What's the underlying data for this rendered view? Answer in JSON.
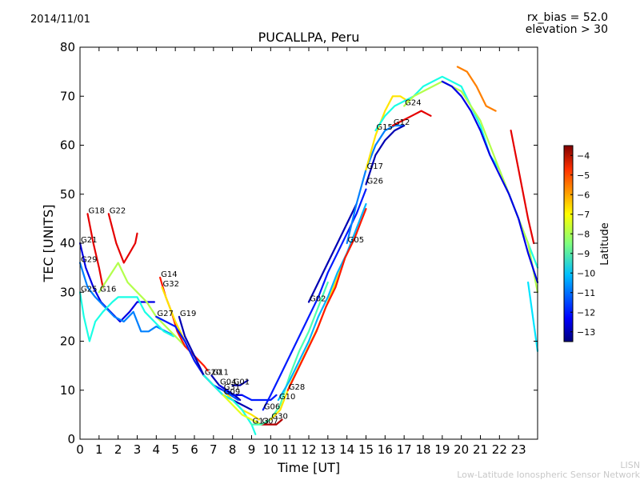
{
  "header": {
    "date": "2014/11/01",
    "rx_bias": "rx_bias = 52.0",
    "elevation": "elevation > 30"
  },
  "footer": {
    "credit_short": "LISN",
    "credit_long": "Low-Latitude Ionospheric Sensor Network"
  },
  "chart_data": {
    "type": "line",
    "title": "PUCALLPA, Peru",
    "xlabel": "Time [UT]",
    "ylabel": "TEC [UNITS]",
    "xlim": [
      0,
      24
    ],
    "ylim": [
      0,
      80
    ],
    "xticks": [
      0,
      1,
      2,
      3,
      4,
      5,
      6,
      7,
      8,
      9,
      10,
      11,
      12,
      13,
      14,
      15,
      16,
      17,
      18,
      19,
      20,
      21,
      22,
      23
    ],
    "yticks": [
      0,
      10,
      20,
      30,
      40,
      50,
      60,
      70,
      80
    ],
    "grid": false,
    "colorbar": {
      "label": "Latitude",
      "range": [
        -13.5,
        -3.5
      ],
      "ticks": [
        -4,
        -5,
        -6,
        -7,
        -8,
        -9,
        -10,
        -11,
        -12,
        -13
      ],
      "colormap": "jet"
    },
    "series": [
      {
        "name": "G18",
        "lat": -4.5,
        "points": [
          [
            0.4,
            46
          ],
          [
            0.7,
            40
          ],
          [
            1.0,
            35
          ],
          [
            1.2,
            31
          ]
        ]
      },
      {
        "name": "G22",
        "lat": -4.5,
        "points": [
          [
            1.5,
            46
          ],
          [
            1.9,
            40
          ],
          [
            2.3,
            36
          ],
          [
            2.6,
            38
          ],
          [
            2.9,
            40
          ],
          [
            3.0,
            42
          ]
        ]
      },
      {
        "name": "G21",
        "lat": -12.5,
        "points": [
          [
            0.0,
            40
          ],
          [
            0.3,
            35
          ],
          [
            0.7,
            31
          ],
          [
            1.1,
            28
          ],
          [
            1.6,
            26
          ],
          [
            2.1,
            24
          ],
          [
            2.6,
            26
          ],
          [
            3.0,
            28
          ],
          [
            3.6,
            28
          ],
          [
            3.9,
            28
          ]
        ]
      },
      {
        "name": "G29",
        "lat": -11.0,
        "points": [
          [
            0.0,
            36
          ],
          [
            0.4,
            31
          ],
          [
            0.8,
            29
          ],
          [
            1.3,
            27
          ],
          [
            1.8,
            25
          ],
          [
            2.3,
            24
          ],
          [
            2.8,
            26
          ],
          [
            3.2,
            22
          ],
          [
            3.6,
            22
          ],
          [
            4.0,
            23
          ],
          [
            4.5,
            22
          ],
          [
            5.0,
            21
          ]
        ]
      },
      {
        "name": "G25",
        "lat": -9.5,
        "points": [
          [
            0.0,
            30
          ],
          [
            0.2,
            25
          ],
          [
            0.5,
            20
          ],
          [
            0.8,
            24
          ],
          [
            1.2,
            26
          ],
          [
            1.7,
            28
          ],
          [
            2.0,
            29
          ],
          [
            2.5,
            29
          ],
          [
            3.0,
            29
          ],
          [
            3.4,
            26
          ],
          [
            3.9,
            24
          ],
          [
            4.4,
            22
          ],
          [
            4.9,
            21
          ]
        ]
      },
      {
        "name": "G16",
        "lat": -8.0,
        "points": [
          [
            1.0,
            30
          ],
          [
            1.5,
            33
          ],
          [
            2.0,
            36
          ],
          [
            2.5,
            32
          ],
          [
            3.0,
            30
          ],
          [
            3.5,
            28
          ],
          [
            4.0,
            25
          ],
          [
            4.5,
            23
          ],
          [
            5.0,
            21
          ],
          [
            5.5,
            19
          ]
        ]
      },
      {
        "name": "G14",
        "lat": -5.0,
        "points": [
          [
            4.2,
            33
          ],
          [
            4.5,
            29
          ],
          [
            4.8,
            26
          ],
          [
            5.1,
            22
          ],
          [
            5.5,
            19
          ],
          [
            6.0,
            17
          ],
          [
            6.5,
            15
          ],
          [
            6.7,
            14
          ]
        ]
      },
      {
        "name": "G32",
        "lat": -7.0,
        "points": [
          [
            4.3,
            31
          ],
          [
            4.7,
            27
          ],
          [
            5.0,
            24
          ],
          [
            5.5,
            20
          ],
          [
            6.0,
            16
          ],
          [
            6.5,
            13
          ],
          [
            7.0,
            11
          ],
          [
            7.5,
            10
          ],
          [
            8.0,
            8
          ],
          [
            8.5,
            6
          ],
          [
            9.0,
            5
          ],
          [
            9.4,
            4
          ]
        ]
      },
      {
        "name": "G27",
        "lat": -12.0,
        "points": [
          [
            4.0,
            25
          ],
          [
            4.5,
            24
          ],
          [
            5.0,
            23
          ],
          [
            5.5,
            20
          ],
          [
            6.0,
            16
          ],
          [
            6.5,
            13
          ],
          [
            7.0,
            11
          ],
          [
            7.5,
            10
          ],
          [
            8.0,
            9
          ],
          [
            8.5,
            9
          ],
          [
            9.0,
            8
          ],
          [
            9.5,
            8
          ],
          [
            10.0,
            8
          ],
          [
            10.3,
            9
          ]
        ]
      },
      {
        "name": "G19",
        "lat": -13.0,
        "points": [
          [
            5.2,
            25
          ],
          [
            5.5,
            21
          ],
          [
            6.0,
            17
          ],
          [
            6.5,
            13
          ],
          [
            7.0,
            11
          ],
          [
            7.5,
            9
          ],
          [
            8.0,
            8
          ],
          [
            8.5,
            7
          ],
          [
            9.0,
            6
          ]
        ]
      },
      {
        "name": "G11",
        "lat": -13.0,
        "points": [
          [
            6.9,
            13
          ],
          [
            7.3,
            11
          ],
          [
            7.7,
            10
          ],
          [
            8.1,
            9
          ],
          [
            8.4,
            8
          ]
        ]
      },
      {
        "name": "G04",
        "lat": -12.5,
        "points": [
          [
            7.3,
            11
          ],
          [
            7.7,
            10
          ],
          [
            8.1,
            9
          ],
          [
            8.5,
            9
          ]
        ]
      },
      {
        "name": "G01",
        "lat": -13.0,
        "points": [
          [
            8.0,
            11
          ],
          [
            8.4,
            11
          ],
          [
            8.8,
            12
          ]
        ]
      },
      {
        "name": "G31",
        "lat": -11.5,
        "points": [
          [
            7.5,
            10
          ],
          [
            7.9,
            9
          ],
          [
            8.3,
            8
          ]
        ]
      },
      {
        "name": "G20",
        "lat": -9.5,
        "points": [
          [
            6.5,
            13
          ],
          [
            7.0,
            11
          ],
          [
            7.5,
            9
          ],
          [
            8.0,
            8
          ],
          [
            8.5,
            6
          ],
          [
            9.0,
            3
          ],
          [
            9.2,
            1
          ]
        ]
      },
      {
        "name": "G09",
        "lat": -7.5,
        "points": [
          [
            7.5,
            9
          ],
          [
            8.0,
            7
          ],
          [
            8.5,
            5
          ],
          [
            9.0,
            4
          ],
          [
            9.5,
            3
          ]
        ]
      },
      {
        "name": "G07",
        "lat": -4.0,
        "points": [
          [
            9.5,
            3
          ],
          [
            10.0,
            3
          ],
          [
            10.3,
            3
          ],
          [
            10.6,
            4
          ]
        ]
      },
      {
        "name": "G13",
        "lat": -9.0,
        "points": [
          [
            9.0,
            3
          ],
          [
            9.5,
            3
          ],
          [
            10.0,
            4
          ],
          [
            10.5,
            7
          ],
          [
            11.0,
            13
          ],
          [
            11.5,
            18
          ],
          [
            12.0,
            22
          ],
          [
            12.5,
            27
          ],
          [
            13.0,
            32
          ]
        ]
      },
      {
        "name": "G06",
        "lat": -12.0,
        "points": [
          [
            9.6,
            6
          ],
          [
            10.0,
            9
          ],
          [
            10.5,
            13
          ],
          [
            11.0,
            17
          ],
          [
            11.5,
            21
          ],
          [
            12.0,
            25
          ],
          [
            12.5,
            29
          ],
          [
            13.0,
            34
          ],
          [
            13.5,
            38
          ],
          [
            14.0,
            42
          ],
          [
            14.5,
            46
          ],
          [
            15.0,
            51
          ]
        ]
      },
      {
        "name": "G30",
        "lat": -7.0,
        "points": [
          [
            10.0,
            4
          ],
          [
            10.5,
            6
          ],
          [
            11.0,
            11
          ],
          [
            11.5,
            15
          ],
          [
            12.0,
            19
          ],
          [
            12.5,
            23
          ],
          [
            13.0,
            28
          ],
          [
            13.5,
            33
          ],
          [
            14.0,
            38
          ],
          [
            14.5,
            42
          ]
        ]
      },
      {
        "name": "G10",
        "lat": -10.5,
        "points": [
          [
            10.4,
            8
          ],
          [
            11.0,
            12
          ],
          [
            11.5,
            16
          ],
          [
            12.0,
            20
          ],
          [
            12.5,
            25
          ],
          [
            13.0,
            29
          ],
          [
            13.5,
            34
          ],
          [
            14.0,
            38
          ],
          [
            14.5,
            43
          ],
          [
            15.0,
            48
          ]
        ]
      },
      {
        "name": "G28",
        "lat": -5.0,
        "points": [
          [
            10.9,
            10
          ],
          [
            11.4,
            14
          ],
          [
            11.9,
            18
          ],
          [
            12.4,
            22
          ],
          [
            12.9,
            27
          ],
          [
            13.4,
            31
          ],
          [
            13.9,
            37
          ],
          [
            14.4,
            41
          ],
          [
            14.8,
            45
          ],
          [
            15.0,
            47
          ]
        ]
      },
      {
        "name": "G02",
        "lat": -13.0,
        "points": [
          [
            12.0,
            28
          ],
          [
            12.5,
            32
          ],
          [
            13.0,
            36
          ],
          [
            13.5,
            40
          ],
          [
            14.0,
            44
          ],
          [
            14.5,
            48
          ]
        ]
      },
      {
        "name": "G05",
        "lat": -11.0,
        "points": [
          [
            14.0,
            40
          ],
          [
            14.5,
            48
          ],
          [
            15.0,
            55
          ],
          [
            15.5,
            60
          ],
          [
            16.0,
            63
          ],
          [
            16.5,
            64
          ],
          [
            17.0,
            64
          ]
        ]
      },
      {
        "name": "G26",
        "lat": -13.0,
        "points": [
          [
            15.0,
            52
          ],
          [
            15.5,
            58
          ],
          [
            16.0,
            61
          ],
          [
            16.5,
            63
          ],
          [
            17.0,
            64
          ]
        ]
      },
      {
        "name": "G17",
        "lat": -7.0,
        "points": [
          [
            15.0,
            55
          ],
          [
            15.5,
            62
          ],
          [
            16.0,
            67
          ],
          [
            16.4,
            70
          ],
          [
            16.8,
            70
          ],
          [
            17.2,
            69
          ]
        ]
      },
      {
        "name": "G12",
        "lat": -4.5,
        "points": [
          [
            16.4,
            64
          ],
          [
            16.9,
            65
          ],
          [
            17.4,
            66
          ],
          [
            17.9,
            67
          ],
          [
            18.4,
            66
          ]
        ]
      },
      {
        "name": "G15",
        "lat": -9.5,
        "points": [
          [
            15.5,
            63
          ],
          [
            16.0,
            66
          ],
          [
            16.5,
            68
          ],
          [
            17.0,
            69
          ],
          [
            17.5,
            70
          ],
          [
            18.0,
            72
          ],
          [
            18.5,
            73
          ],
          [
            19.0,
            74
          ],
          [
            19.5,
            73
          ],
          [
            20.0,
            72
          ],
          [
            20.5,
            68
          ],
          [
            21.0,
            64
          ],
          [
            21.5,
            58
          ],
          [
            22.0,
            55
          ],
          [
            22.5,
            50
          ],
          [
            23.0,
            45
          ],
          [
            23.5,
            40
          ],
          [
            24.0,
            35
          ]
        ]
      },
      {
        "name": "G24",
        "lat": -8.0,
        "points": [
          [
            17.0,
            68
          ],
          [
            17.5,
            70
          ],
          [
            18.0,
            71
          ],
          [
            18.5,
            72
          ],
          [
            19.0,
            73
          ],
          [
            19.5,
            72
          ],
          [
            20.0,
            71
          ],
          [
            20.5,
            68
          ],
          [
            21.0,
            65
          ],
          [
            21.5,
            60
          ],
          [
            22.0,
            55
          ],
          [
            22.5,
            50
          ],
          [
            23.0,
            45
          ],
          [
            23.5,
            40
          ],
          [
            24.0,
            30
          ]
        ]
      },
      {
        "name": "",
        "lat": -12.5,
        "points": [
          [
            19.0,
            73
          ],
          [
            19.5,
            72
          ],
          [
            20.0,
            70
          ],
          [
            20.5,
            67
          ],
          [
            21.0,
            63
          ],
          [
            21.5,
            58
          ],
          [
            22.0,
            54
          ],
          [
            22.5,
            50
          ],
          [
            23.0,
            45
          ],
          [
            23.5,
            38
          ],
          [
            24.0,
            32
          ]
        ]
      },
      {
        "name": "",
        "lat": -6.0,
        "points": [
          [
            19.8,
            76
          ],
          [
            20.3,
            75
          ],
          [
            20.8,
            72
          ],
          [
            21.3,
            68
          ],
          [
            21.8,
            67
          ]
        ]
      },
      {
        "name": "",
        "lat": -4.5,
        "points": [
          [
            22.6,
            63
          ],
          [
            23.0,
            55
          ],
          [
            23.5,
            45
          ],
          [
            23.8,
            40
          ]
        ]
      },
      {
        "name": "",
        "lat": -10.0,
        "points": [
          [
            23.5,
            32
          ],
          [
            24.0,
            18
          ]
        ]
      }
    ]
  }
}
